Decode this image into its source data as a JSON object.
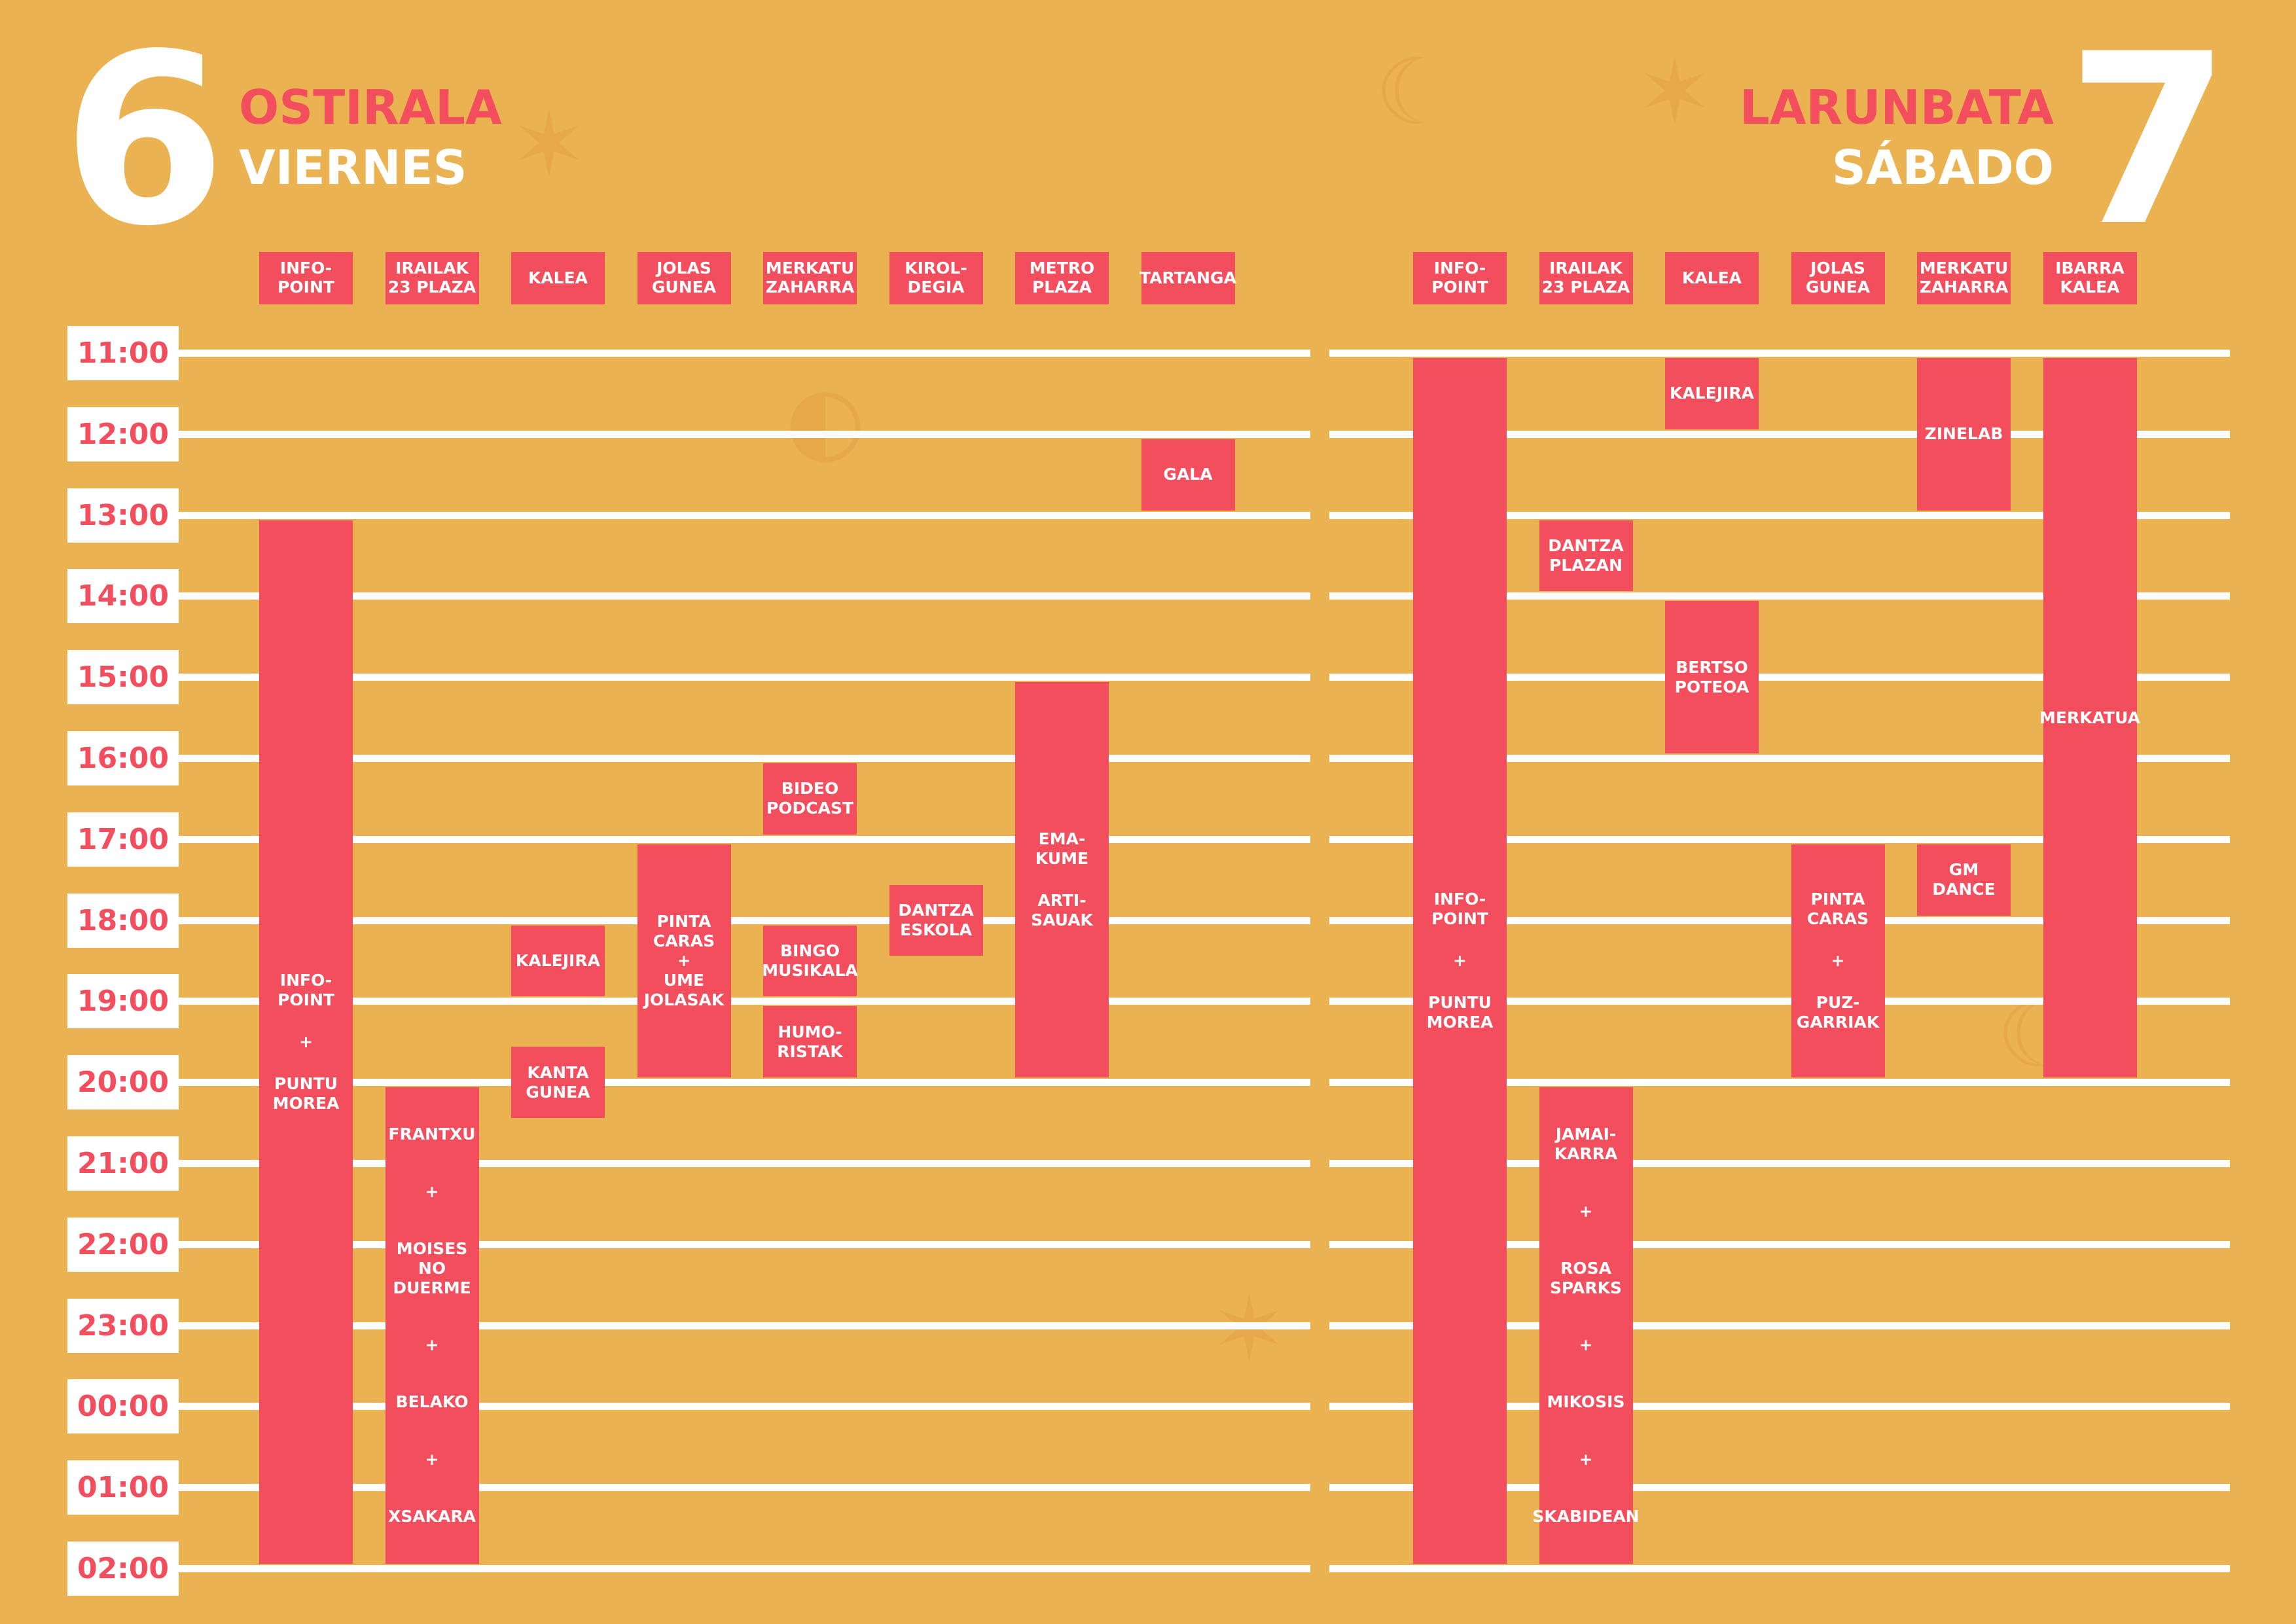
{
  "friday": {
    "number": "6",
    "name_eu": "OSTIRALA",
    "name_es": "VIERNES",
    "venues": [
      "INFO-\nPOINT",
      "IRAILAK\n23 PLAZA",
      "KALEA",
      "JOLAS\nGUNEA",
      "MERKATU\nZAHARRA",
      "KIROL-\nDEGIA",
      "METRO\nPLAZA",
      "TARTANGA"
    ],
    "events": [
      {
        "col": 7,
        "start": "12:00",
        "end": "13:00",
        "items": [
          "GALA"
        ]
      },
      {
        "col": 0,
        "start": "13:00",
        "end": "02:00",
        "items": [
          "INFO-\nPOINT",
          "+",
          "PUNTU\nMOREA"
        ]
      },
      {
        "col": 1,
        "start": "20:00",
        "end": "02:00",
        "long": true,
        "items": [
          "FRANTXU",
          "+",
          "MOISES\nNO DUERME",
          "+",
          "BELAKO",
          "+",
          "XSAKARA"
        ]
      },
      {
        "col": 2,
        "start": "18:00",
        "end": "19:00",
        "items": [
          "KALEJIRA"
        ]
      },
      {
        "col": 2,
        "start": "19:30",
        "end": "20:30",
        "items": [
          "KANTA\nGUNEA"
        ]
      },
      {
        "col": 3,
        "start": "17:00",
        "end": "20:00",
        "items": [
          "PINTA\nCARAS\n+\nUME\nJOLASAK"
        ]
      },
      {
        "col": 4,
        "start": "16:00",
        "end": "17:00",
        "items": [
          "BIDEO\nPODCAST"
        ]
      },
      {
        "col": 4,
        "start": "18:00",
        "end": "19:00",
        "items": [
          "BINGO\nMUSIKALA"
        ]
      },
      {
        "col": 4,
        "start": "19:00",
        "end": "20:00",
        "items": [
          "HUMO-\nRISTAK"
        ]
      },
      {
        "col": 5,
        "start": "17:30",
        "end": "18:30",
        "items": [
          "DANTZA\nESKOLA"
        ]
      },
      {
        "col": 6,
        "start": "15:00",
        "end": "20:00",
        "items": [
          "EMA-\nKUME",
          "ARTI-\nSAUAK"
        ]
      }
    ]
  },
  "saturday": {
    "number": "7",
    "name_eu": "LARUNBATA",
    "name_es": "SÁBADO",
    "venues": [
      "INFO-\nPOINT",
      "IRAILAK\n23 PLAZA",
      "KALEA",
      "JOLAS\nGUNEA",
      "MERKATU\nZAHARRA",
      "IBARRA\nKALEA"
    ],
    "events": [
      {
        "col": 0,
        "start": "11:00",
        "end": "02:00",
        "items": [
          "INFO-\nPOINT",
          "+",
          "PUNTU\nMOREA"
        ]
      },
      {
        "col": 1,
        "start": "13:00",
        "end": "14:00",
        "items": [
          "DANTZA\nPLAZAN"
        ]
      },
      {
        "col": 1,
        "start": "20:00",
        "end": "02:00",
        "long": true,
        "items": [
          "JAMAI-\nKARRA",
          "+",
          "ROSA\nSPARKS",
          "+",
          "MIKOSIS",
          "+",
          "SKABIDEAN"
        ]
      },
      {
        "col": 2,
        "start": "11:00",
        "end": "12:00",
        "items": [
          "KALEJIRA"
        ]
      },
      {
        "col": 2,
        "start": "14:00",
        "end": "16:00",
        "items": [
          "BERTSO\nPOTEOA"
        ]
      },
      {
        "col": 3,
        "start": "17:00",
        "end": "20:00",
        "items": [
          "PINTA\nCARAS",
          "+",
          "PUZ-\nGARRIAK"
        ]
      },
      {
        "col": 4,
        "start": "11:00",
        "end": "13:00",
        "items": [
          "ZINELAB"
        ]
      },
      {
        "col": 4,
        "start": "17:00",
        "end": "18:00",
        "items": [
          "GM DANCE"
        ]
      },
      {
        "col": 5,
        "start": "11:00",
        "end": "20:00",
        "items": [
          "MERKATUA"
        ]
      }
    ]
  },
  "times": [
    "11:00",
    "12:00",
    "13:00",
    "14:00",
    "15:00",
    "16:00",
    "17:00",
    "18:00",
    "19:00",
    "20:00",
    "21:00",
    "22:00",
    "23:00",
    "00:00",
    "01:00",
    "02:00"
  ],
  "colors": {
    "background": "#EBB251",
    "accent": "#F24E5E",
    "text": "#FFFFFF"
  }
}
